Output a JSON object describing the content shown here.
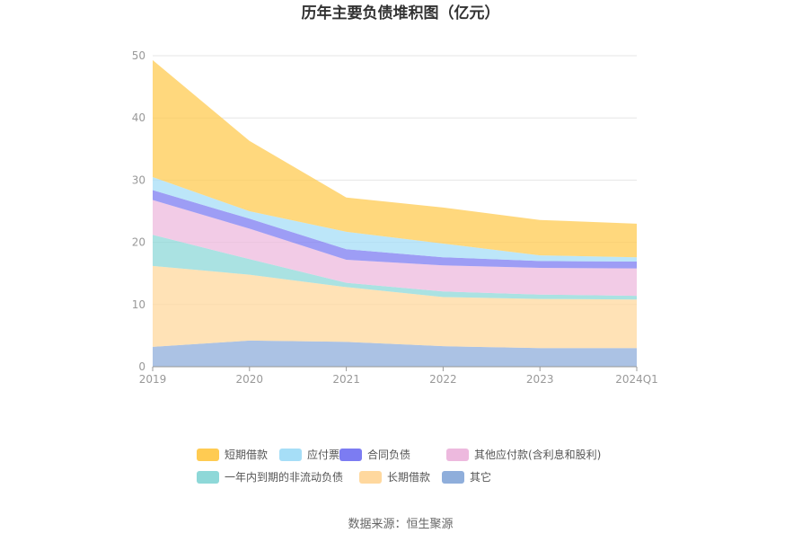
{
  "chart_data": {
    "type": "area",
    "stacked": true,
    "title": "历年主要负债堆积图（亿元）",
    "categories": [
      "2019",
      "2020",
      "2021",
      "2022",
      "2023",
      "2024Q1"
    ],
    "yticks": [
      "0",
      "10",
      "20",
      "30",
      "40",
      "50"
    ],
    "ylim": [
      0,
      50
    ],
    "grid": true,
    "legend_position": "bottom",
    "series": [
      {
        "name": "其它",
        "color": "#8FAEDB",
        "values": [
          3.2,
          4.2,
          4.0,
          3.3,
          3.0,
          3.0
        ]
      },
      {
        "name": "长期借款",
        "color": "#FFD89E",
        "values": [
          13.0,
          10.6,
          8.8,
          7.9,
          7.9,
          7.8
        ]
      },
      {
        "name": "一年内到期的非流动负债",
        "color": "#8ED8D8",
        "values": [
          5.0,
          2.5,
          0.7,
          0.9,
          0.7,
          0.6
        ]
      },
      {
        "name": "其他应付款(含利息和股利)",
        "color": "#EDB9DE",
        "values": [
          5.6,
          4.9,
          3.7,
          4.2,
          4.3,
          4.4
        ]
      },
      {
        "name": "合同负债",
        "color": "#7C7CF2",
        "values": [
          1.6,
          1.6,
          1.7,
          1.3,
          1.1,
          1.1
        ]
      },
      {
        "name": "应付票据",
        "color": "#A6DEF7",
        "values": [
          2.1,
          1.2,
          2.8,
          2.2,
          0.9,
          0.7
        ]
      },
      {
        "name": "短期借款",
        "color": "#FFCB52",
        "values": [
          18.8,
          11.3,
          5.5,
          5.8,
          5.7,
          5.4
        ]
      }
    ],
    "legend_order": [
      "短期借款",
      "应付票据",
      "合同负债",
      "其他应付款(含利息和股利)",
      "一年内到期的非流动负债",
      "长期借款",
      "其它"
    ]
  },
  "source": "数据来源：恒生聚源"
}
